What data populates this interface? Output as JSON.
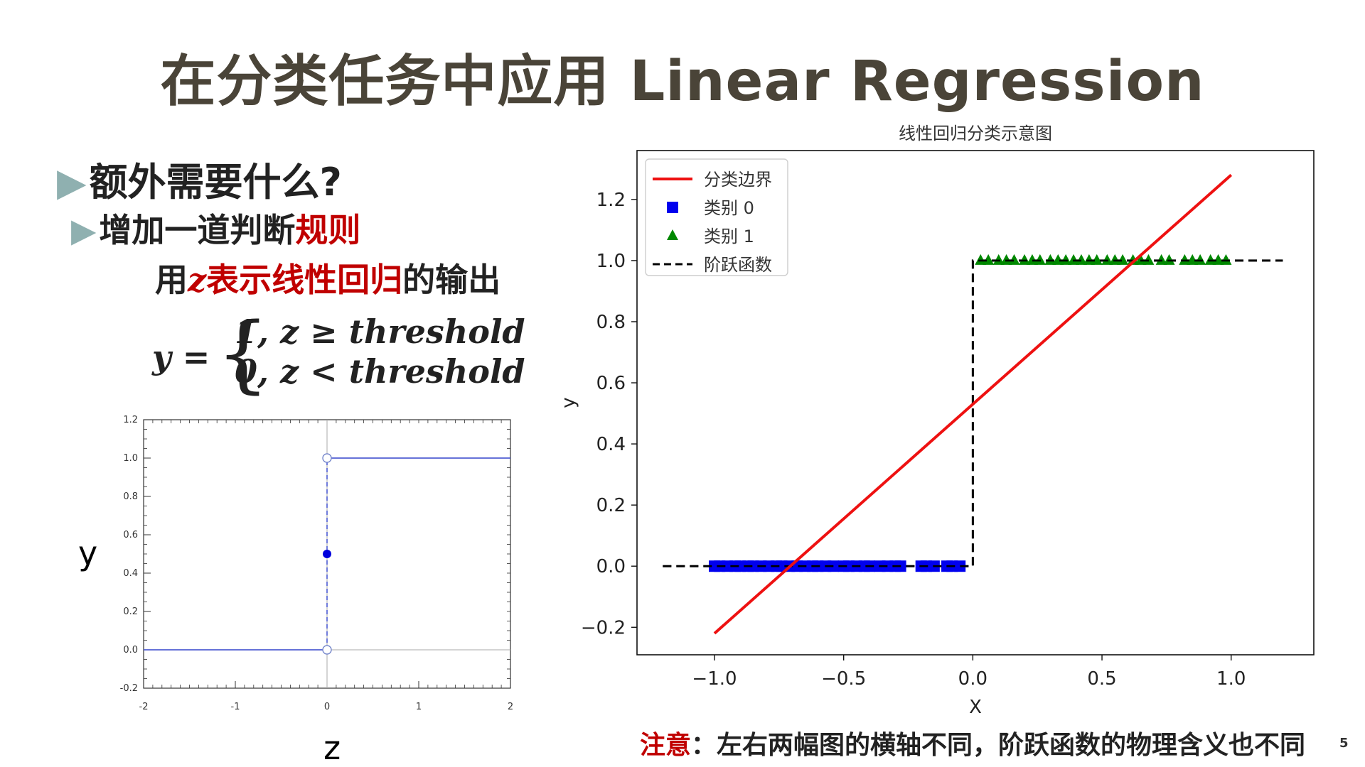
{
  "title": "在分类任务中应用 Linear Regression",
  "bullets": {
    "b1_text": "额外需要什么?",
    "b2_pre": "增加一道判断",
    "b2_red": "规则",
    "b3_pre": "用",
    "b3_var": "z",
    "b3_red": "表示线性回归",
    "b3_post": "的输出"
  },
  "formula": {
    "lhs": "y =",
    "case1": "1, z ≥ threshold",
    "case2": "0, z < threshold"
  },
  "left_axis_labels": {
    "y": "y",
    "x": "z"
  },
  "note": {
    "prefix": "注意",
    "text": "：左右两幅图的横轴不同，阶跃函数的物理含义也不同"
  },
  "page_number": "5",
  "colors": {
    "accent_red": "#c00000",
    "title": "#4a4438",
    "bullet_tri": "#8fb0b0"
  },
  "chart_data": [
    {
      "type": "line",
      "title": "",
      "xlabel": "",
      "ylabel": "",
      "xlim": [
        -2,
        2
      ],
      "ylim": [
        -0.2,
        1.2
      ],
      "x_ticks": [
        "-2",
        "-1",
        "0",
        "1",
        "2"
      ],
      "y_ticks": [
        "-0.2",
        "0.0",
        "0.2",
        "0.4",
        "0.6",
        "0.8",
        "1.0",
        "1.2"
      ],
      "series": [
        {
          "values_segments": [
            [
              [
                -2,
                0
              ],
              [
                0,
                0
              ]
            ],
            [
              [
                0,
                1
              ],
              [
                2,
                1
              ]
            ]
          ],
          "color": "#3344cc"
        }
      ],
      "open_points": [
        [
          0,
          1
        ],
        [
          0,
          0
        ]
      ],
      "filled_points": [
        [
          0,
          0.5
        ]
      ]
    },
    {
      "type": "scatter",
      "title": "线性回归分类示意图",
      "xlabel": "X",
      "ylabel": "y",
      "xlim": [
        -1.3,
        1.32
      ],
      "ylim": [
        -0.29,
        1.36
      ],
      "x_ticks": [
        "−1.0",
        "−0.5",
        "0.0",
        "0.5",
        "1.0"
      ],
      "y_ticks": [
        "−0.2",
        "0.0",
        "0.2",
        "0.4",
        "0.6",
        "0.8",
        "1.0",
        "1.2"
      ],
      "legend_position": "top-left",
      "series": [
        {
          "name": "分类边界",
          "kind": "line",
          "color": "#ee1111",
          "points": [
            [
              -1.0,
              -0.22
            ],
            [
              1.0,
              1.28
            ]
          ]
        },
        {
          "name": "类别 0",
          "kind": "marker-square",
          "color": "#0000ee",
          "x": [
            -1.0,
            -0.98,
            -0.95,
            -0.92,
            -0.9,
            -0.87,
            -0.85,
            -0.82,
            -0.79,
            -0.76,
            -0.74,
            -0.71,
            -0.68,
            -0.65,
            -0.62,
            -0.6,
            -0.57,
            -0.54,
            -0.5,
            -0.48,
            -0.45,
            -0.42,
            -0.4,
            -0.36,
            -0.33,
            -0.3,
            -0.28,
            -0.2,
            -0.18,
            -0.15,
            -0.1,
            -0.08,
            -0.05
          ],
          "y": 0
        },
        {
          "name": "类别 1",
          "kind": "marker-triangle",
          "color": "#008800",
          "x": [
            0.03,
            0.06,
            0.1,
            0.13,
            0.16,
            0.2,
            0.23,
            0.26,
            0.3,
            0.33,
            0.36,
            0.39,
            0.42,
            0.45,
            0.48,
            0.52,
            0.55,
            0.58,
            0.62,
            0.65,
            0.68,
            0.73,
            0.76,
            0.82,
            0.85,
            0.88,
            0.92,
            0.95,
            0.98
          ],
          "y": 1
        },
        {
          "name": "阶跃函数",
          "kind": "dashed-line",
          "color": "#000000",
          "points": [
            [
              -1.2,
              0
            ],
            [
              0,
              0
            ],
            [
              0,
              1
            ],
            [
              1.2,
              1
            ]
          ]
        }
      ]
    }
  ]
}
